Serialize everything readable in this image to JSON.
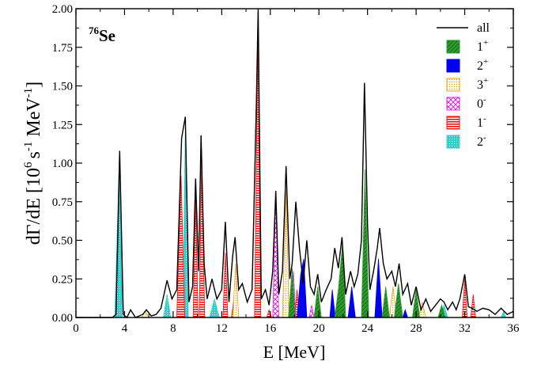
{
  "chart_data": {
    "type": "area",
    "annotation": {
      "mass": "76",
      "element": "Se"
    },
    "xlabel": "E [MeV]",
    "ylabel": {
      "base": "dΓ/dE [10",
      "exp1": "6",
      "mid": "s",
      "exp2": "-1",
      "unit": " MeV",
      "exp3": "-1",
      "end": "]"
    },
    "xlim": [
      0,
      36
    ],
    "ylim": [
      0,
      2.0
    ],
    "xticks": [
      "0",
      "4",
      "8",
      "12",
      "16",
      "20",
      "24",
      "28",
      "32",
      "36"
    ],
    "yticks": [
      "0.00",
      "0.25",
      "0.50",
      "0.75",
      "1.00",
      "1.25",
      "1.50",
      "1.75",
      "2.00"
    ],
    "legend_position": "top-right",
    "legend": [
      {
        "key": "all",
        "base": "all",
        "sup": "",
        "color": "#000000",
        "pattern": "line"
      },
      {
        "key": "1p",
        "base": "1",
        "sup": "+",
        "color": "#2e9a2e",
        "pattern": "solid-green"
      },
      {
        "key": "2p",
        "base": "2",
        "sup": "+",
        "color": "#0000ee",
        "pattern": "solid-blue"
      },
      {
        "key": "3p",
        "base": "3",
        "sup": "+",
        "color": "#e8a020",
        "pattern": "dots"
      },
      {
        "key": "0m",
        "base": "0",
        "sup": "-",
        "color": "#dd22dd",
        "pattern": "cross"
      },
      {
        "key": "1m",
        "base": "1",
        "sup": "-",
        "color": "#ee1111",
        "pattern": "hlines"
      },
      {
        "key": "2m",
        "base": "2",
        "sup": "-",
        "color": "#33cccc",
        "pattern": "grid"
      }
    ],
    "series": [
      {
        "key": "all",
        "points": [
          [
            0,
            0
          ],
          [
            3.0,
            0
          ],
          [
            3.3,
            0.02
          ],
          [
            3.6,
            1.08
          ],
          [
            3.9,
            0.02
          ],
          [
            4.2,
            0
          ],
          [
            4.5,
            0.05
          ],
          [
            4.9,
            0
          ],
          [
            5.5,
            0.02
          ],
          [
            5.8,
            0.05
          ],
          [
            6.2,
            0.01
          ],
          [
            6.6,
            0.02
          ],
          [
            7.0,
            0.06
          ],
          [
            7.5,
            0.24
          ],
          [
            7.9,
            0.12
          ],
          [
            8.3,
            0.18
          ],
          [
            8.7,
            1.16
          ],
          [
            9.0,
            1.3
          ],
          [
            9.3,
            0.1
          ],
          [
            9.6,
            0.2
          ],
          [
            9.85,
            0.9
          ],
          [
            10.1,
            0.3
          ],
          [
            10.3,
            1.18
          ],
          [
            10.55,
            0.35
          ],
          [
            10.8,
            0.12
          ],
          [
            11.2,
            0.25
          ],
          [
            11.6,
            0.12
          ],
          [
            12.0,
            0.18
          ],
          [
            12.3,
            0.62
          ],
          [
            12.6,
            0.1
          ],
          [
            12.9,
            0.4
          ],
          [
            13.1,
            0.52
          ],
          [
            13.4,
            0.18
          ],
          [
            13.7,
            0.22
          ],
          [
            14.1,
            0.1
          ],
          [
            14.5,
            0.18
          ],
          [
            14.85,
            1.38
          ],
          [
            15.0,
            2.0
          ],
          [
            15.25,
            0.12
          ],
          [
            15.6,
            0.18
          ],
          [
            15.9,
            0.08
          ],
          [
            16.2,
            0.3
          ],
          [
            16.45,
            0.82
          ],
          [
            16.7,
            0.15
          ],
          [
            17.0,
            0.3
          ],
          [
            17.3,
            0.98
          ],
          [
            17.6,
            0.25
          ],
          [
            17.8,
            0.35
          ],
          [
            18.1,
            0.75
          ],
          [
            18.4,
            0.45
          ],
          [
            18.7,
            0.22
          ],
          [
            19.0,
            0.5
          ],
          [
            19.3,
            0.2
          ],
          [
            19.6,
            0.15
          ],
          [
            19.9,
            0.28
          ],
          [
            20.2,
            0.1
          ],
          [
            20.6,
            0.18
          ],
          [
            21.0,
            0.25
          ],
          [
            21.3,
            0.45
          ],
          [
            21.6,
            0.32
          ],
          [
            21.9,
            0.52
          ],
          [
            22.2,
            0.15
          ],
          [
            22.6,
            0.3
          ],
          [
            22.9,
            0.2
          ],
          [
            23.2,
            0.28
          ],
          [
            23.5,
            0.5
          ],
          [
            23.75,
            1.52
          ],
          [
            24.0,
            0.6
          ],
          [
            24.2,
            0.18
          ],
          [
            24.5,
            0.3
          ],
          [
            24.8,
            0.45
          ],
          [
            25.0,
            0.58
          ],
          [
            25.3,
            0.35
          ],
          [
            25.6,
            0.25
          ],
          [
            26.0,
            0.3
          ],
          [
            26.3,
            0.2
          ],
          [
            26.6,
            0.35
          ],
          [
            26.9,
            0.15
          ],
          [
            27.3,
            0.22
          ],
          [
            27.6,
            0.08
          ],
          [
            28.0,
            0.2
          ],
          [
            28.4,
            0.05
          ],
          [
            28.8,
            0.12
          ],
          [
            29.2,
            0.04
          ],
          [
            29.6,
            0.08
          ],
          [
            30.0,
            0.12
          ],
          [
            30.3,
            0.1
          ],
          [
            30.6,
            0.05
          ],
          [
            31.0,
            0.1
          ],
          [
            31.3,
            0.05
          ],
          [
            31.6,
            0.12
          ],
          [
            32.0,
            0.28
          ],
          [
            32.3,
            0.07
          ],
          [
            32.6,
            0.06
          ],
          [
            33.0,
            0.04
          ],
          [
            33.5,
            0.06
          ],
          [
            34.0,
            0.05
          ],
          [
            34.5,
            0.02
          ],
          [
            35.0,
            0.06
          ],
          [
            35.5,
            0.02
          ],
          [
            36.0,
            0.04
          ]
        ]
      },
      {
        "key": "2m",
        "points": [
          [
            3.2,
            0
          ],
          [
            3.55,
            0.98
          ],
          [
            3.85,
            0
          ],
          [
            7.2,
            0
          ],
          [
            7.5,
            0.15
          ],
          [
            7.8,
            0
          ],
          [
            8.8,
            0
          ],
          [
            9.0,
            1.22
          ],
          [
            9.25,
            0
          ],
          [
            11.0,
            0
          ],
          [
            11.4,
            0.12
          ],
          [
            11.8,
            0
          ],
          [
            30.0,
            0
          ],
          [
            30.3,
            0.08
          ],
          [
            30.6,
            0
          ],
          [
            35.0,
            0
          ],
          [
            35.2,
            0.04
          ],
          [
            35.4,
            0
          ]
        ]
      },
      {
        "key": "1m",
        "points": [
          [
            8.3,
            0
          ],
          [
            8.65,
            0.92
          ],
          [
            8.95,
            0
          ],
          [
            9.65,
            0
          ],
          [
            9.85,
            0.8
          ],
          [
            10.05,
            0
          ],
          [
            10.15,
            0
          ],
          [
            10.35,
            1.08
          ],
          [
            10.6,
            0
          ],
          [
            12.1,
            0
          ],
          [
            12.3,
            0.42
          ],
          [
            12.5,
            0
          ],
          [
            12.8,
            0
          ],
          [
            13.0,
            0.12
          ],
          [
            13.2,
            0
          ],
          [
            14.7,
            0
          ],
          [
            14.98,
            1.86
          ],
          [
            15.22,
            0
          ],
          [
            15.7,
            0
          ],
          [
            15.9,
            0.05
          ],
          [
            16.1,
            0
          ],
          [
            18.0,
            0
          ],
          [
            18.2,
            0.18
          ],
          [
            18.4,
            0
          ],
          [
            31.8,
            0
          ],
          [
            32.0,
            0.25
          ],
          [
            32.2,
            0
          ],
          [
            32.5,
            0
          ],
          [
            32.7,
            0.15
          ],
          [
            32.9,
            0
          ]
        ]
      },
      {
        "key": "3p",
        "points": [
          [
            5.4,
            0
          ],
          [
            5.7,
            0.04
          ],
          [
            6.0,
            0
          ],
          [
            12.9,
            0
          ],
          [
            13.15,
            0.35
          ],
          [
            13.4,
            0
          ],
          [
            17.0,
            0
          ],
          [
            17.3,
            0.82
          ],
          [
            17.55,
            0
          ],
          [
            25.8,
            0
          ],
          [
            26.1,
            0.2
          ],
          [
            26.4,
            0
          ],
          [
            28.2,
            0
          ],
          [
            28.5,
            0.1
          ],
          [
            28.8,
            0
          ]
        ]
      },
      {
        "key": "0m",
        "points": [
          [
            16.2,
            0
          ],
          [
            16.45,
            0.8
          ],
          [
            16.7,
            0
          ],
          [
            17.7,
            0
          ],
          [
            17.9,
            0.3
          ],
          [
            18.1,
            0
          ],
          [
            19.2,
            0
          ],
          [
            19.4,
            0.08
          ],
          [
            19.6,
            0
          ]
        ]
      },
      {
        "key": "2p",
        "points": [
          [
            18.2,
            0
          ],
          [
            18.5,
            0.28
          ],
          [
            18.75,
            0.38
          ],
          [
            19.0,
            0
          ],
          [
            20.9,
            0
          ],
          [
            21.1,
            0.18
          ],
          [
            21.35,
            0
          ],
          [
            22.4,
            0
          ],
          [
            22.7,
            0.2
          ],
          [
            23.0,
            0
          ],
          [
            24.6,
            0
          ],
          [
            24.9,
            0.38
          ],
          [
            25.2,
            0
          ],
          [
            26.9,
            0
          ],
          [
            27.1,
            0.05
          ],
          [
            27.3,
            0
          ]
        ]
      },
      {
        "key": "1p",
        "points": [
          [
            17.5,
            0
          ],
          [
            17.8,
            0.32
          ],
          [
            18.05,
            0
          ],
          [
            19.6,
            0
          ],
          [
            19.9,
            0.2
          ],
          [
            20.2,
            0
          ],
          [
            21.3,
            0
          ],
          [
            21.6,
            0.18
          ],
          [
            21.95,
            0.48
          ],
          [
            22.2,
            0
          ],
          [
            23.5,
            0
          ],
          [
            23.8,
            0.96
          ],
          [
            24.1,
            0
          ],
          [
            25.2,
            0
          ],
          [
            25.5,
            0.2
          ],
          [
            25.8,
            0
          ],
          [
            26.2,
            0
          ],
          [
            26.55,
            0.22
          ],
          [
            26.9,
            0
          ],
          [
            27.7,
            0
          ],
          [
            28.0,
            0.18
          ],
          [
            28.3,
            0
          ],
          [
            29.8,
            0
          ],
          [
            30.1,
            0.08
          ],
          [
            30.4,
            0
          ]
        ]
      }
    ]
  }
}
